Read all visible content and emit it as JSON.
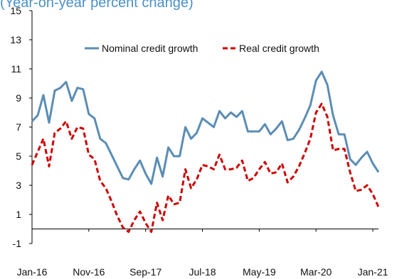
{
  "chart_data": {
    "type": "line",
    "title": "(Year-on-year percent change)",
    "xlabel": "",
    "ylabel": "",
    "x_tick_labels": [
      "Jan-16",
      "Nov-16",
      "Sep-17",
      "Jul-18",
      "May-19",
      "Mar-20",
      "Jan-21"
    ],
    "y_ticks": [
      -1,
      1,
      3,
      5,
      7,
      9,
      11,
      13,
      15
    ],
    "ylim": [
      -1,
      15
    ],
    "legend_position": "top",
    "grid": false,
    "series": [
      {
        "name": "Nominal credit growth",
        "color": "#5b8db5",
        "dash": "solid",
        "values": [
          7.4,
          7.8,
          9.2,
          7.3,
          9.5,
          9.7,
          10.1,
          8.8,
          9.7,
          9.6,
          7.9,
          7.6,
          6.2,
          5.9,
          5.1,
          4.3,
          3.5,
          3.4,
          4.1,
          4.7,
          3.8,
          3.1,
          4.9,
          3.6,
          5.6,
          5.0,
          5.0,
          7.0,
          6.2,
          6.6,
          7.6,
          7.3,
          7.0,
          8.1,
          7.6,
          8.0,
          7.7,
          8.1,
          6.7,
          6.7,
          6.7,
          7.2,
          6.5,
          6.9,
          7.4,
          6.1,
          6.2,
          6.8,
          7.6,
          8.5,
          10.2,
          10.8,
          9.9,
          7.8,
          6.5,
          6.5,
          4.8,
          4.4,
          4.9,
          5.3,
          4.5,
          3.9
        ]
      },
      {
        "name": "Real credit growth",
        "color": "#cc0000",
        "dash": "dashed",
        "values": [
          4.4,
          5.3,
          6.2,
          4.3,
          6.6,
          6.9,
          7.4,
          6.2,
          7.0,
          6.9,
          5.1,
          4.8,
          3.3,
          2.8,
          1.9,
          0.9,
          0.1,
          -0.2,
          0.6,
          1.2,
          0.4,
          -0.2,
          1.8,
          0.6,
          2.3,
          1.7,
          1.8,
          4.1,
          2.8,
          3.4,
          4.4,
          4.3,
          4.1,
          5.1,
          4.1,
          4.1,
          4.2,
          4.7,
          3.3,
          3.5,
          4.1,
          4.6,
          3.8,
          3.9,
          4.5,
          3.2,
          3.6,
          4.3,
          5.2,
          6.2,
          8.0,
          8.6,
          7.7,
          5.4,
          5.5,
          5.5,
          3.9,
          2.6,
          2.7,
          3.0,
          2.4,
          1.5
        ]
      }
    ]
  }
}
